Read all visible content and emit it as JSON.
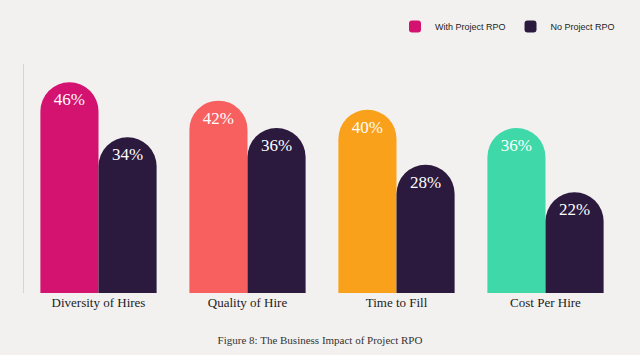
{
  "chart_data": {
    "type": "bar",
    "title": "Figure 8: The Business Impact of Project RPO",
    "categories": [
      "Diversity of Hires",
      "Quality of Hire",
      "Time to Fill",
      "Cost Per Hire"
    ],
    "series": [
      {
        "name": "With Project RPO",
        "colors": [
          "#d4126f",
          "#f8605f",
          "#f9a11b",
          "#3fd9a9"
        ],
        "values": [
          46,
          42,
          40,
          36
        ],
        "value_labels": [
          "46%",
          "42%",
          "40%",
          "36%"
        ]
      },
      {
        "name": "No Project RPO",
        "color": "#2b1a3d",
        "values": [
          34,
          36,
          28,
          22
        ],
        "value_labels": [
          "34%",
          "36%",
          "28%",
          "22%"
        ]
      }
    ],
    "ylim": [
      0,
      50
    ],
    "grid": false,
    "legend": "top right",
    "data_labels": true,
    "tick_labels": "x"
  }
}
